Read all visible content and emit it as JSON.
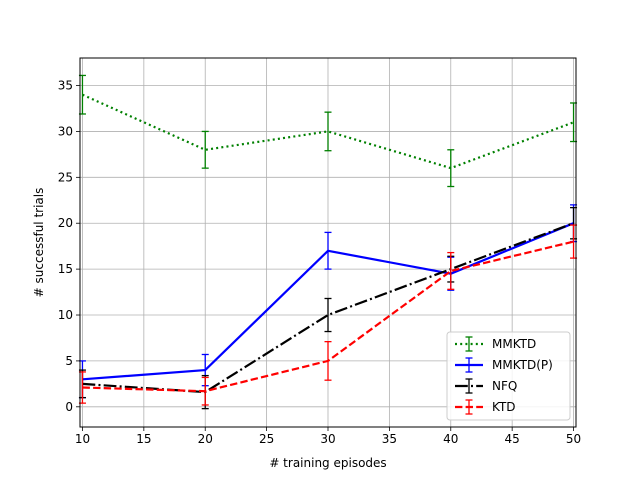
{
  "chart_data": {
    "type": "line",
    "xlabel": "# training episodes",
    "ylabel": "# successful trials",
    "xlim": [
      9.8,
      50.2
    ],
    "ylim": [
      -2.2,
      38
    ],
    "xticks": [
      10,
      15,
      20,
      25,
      30,
      35,
      40,
      45,
      50
    ],
    "yticks": [
      0,
      5,
      10,
      15,
      20,
      25,
      30,
      35
    ],
    "grid": true,
    "legend_position": "lower-right",
    "x": [
      10,
      20,
      30,
      40,
      50
    ],
    "series": [
      {
        "name": "MMKTD",
        "values": [
          34,
          28,
          30,
          26,
          31
        ],
        "errors": [
          2.1,
          2.0,
          2.1,
          2.0,
          2.1
        ],
        "color": "#008000",
        "style": "dotted"
      },
      {
        "name": "MMKTD(P)",
        "values": [
          3,
          4,
          17,
          14.5,
          20
        ],
        "errors": [
          2.0,
          1.7,
          2.0,
          1.8,
          2.0
        ],
        "color": "#0000ff",
        "style": "solid"
      },
      {
        "name": "NFQ",
        "values": [
          2.5,
          1.6,
          10,
          15,
          20
        ],
        "errors": [
          1.5,
          1.8,
          1.8,
          1.4,
          1.7
        ],
        "color": "#000000",
        "style": "dashdot"
      },
      {
        "name": "KTD",
        "values": [
          2.1,
          1.7,
          5,
          14.8,
          18
        ],
        "errors": [
          1.7,
          1.5,
          2.1,
          2.0,
          1.8
        ],
        "color": "#ff0000",
        "style": "dashed"
      }
    ]
  }
}
